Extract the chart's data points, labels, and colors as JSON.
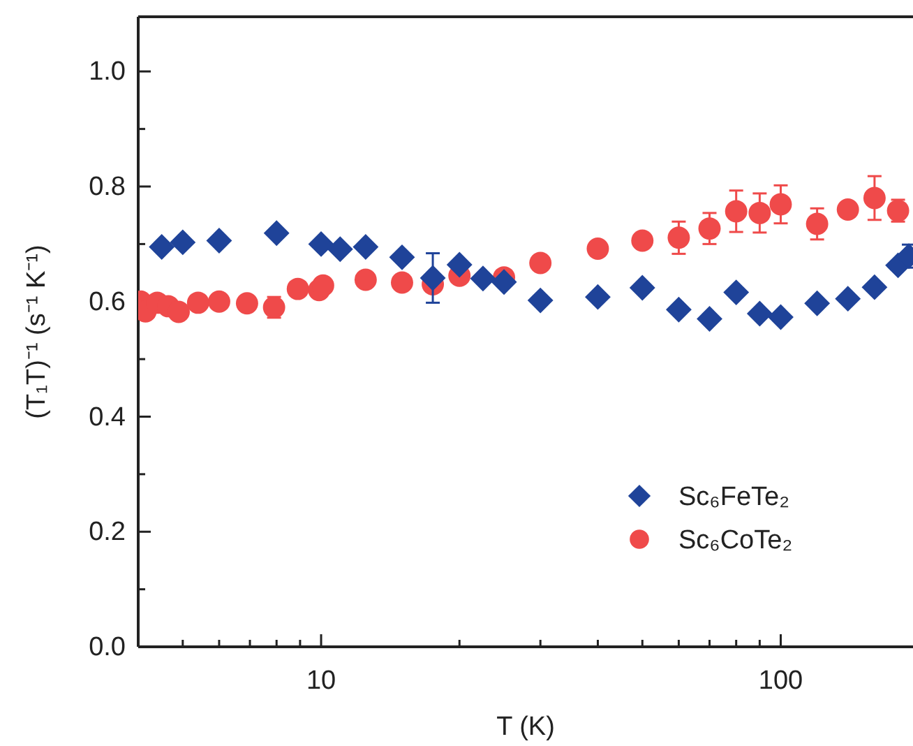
{
  "chart_data": {
    "type": "scatter",
    "xlabel": "T (K)",
    "ylabel": "(T₁T)⁻¹ (s⁻¹ K⁻¹)",
    "log": "x",
    "xlim": [
      4,
      194
    ],
    "ylim": [
      0,
      1.095
    ],
    "xticks": [
      {
        "value": 5,
        "label": null
      },
      {
        "value": 6,
        "label": null
      },
      {
        "value": 7,
        "label": null
      },
      {
        "value": 8,
        "label": null
      },
      {
        "value": 9,
        "label": null
      },
      10,
      {
        "value": 20,
        "label": null
      },
      {
        "value": 30,
        "label": null
      },
      {
        "value": 40,
        "label": null
      },
      {
        "value": 50,
        "label": null
      },
      {
        "value": 60,
        "label": null
      },
      {
        "value": 70,
        "label": null
      },
      {
        "value": 80,
        "label": null
      },
      {
        "value": 90,
        "label": null
      },
      100
    ],
    "yticks": [
      {
        "value": 0,
        "label": "0.0"
      },
      {
        "value": 0.1,
        "label": null
      },
      0.2,
      {
        "value": 0.3,
        "label": null
      },
      0.4,
      {
        "value": 0.5,
        "label": null
      },
      0.6,
      {
        "value": 0.7,
        "label": null
      },
      0.8,
      {
        "value": 0.9,
        "label": null
      },
      {
        "value": 1,
        "label": "1.0"
      }
    ],
    "legend": "bottom right",
    "grid": false,
    "series": [
      {
        "name": "Sc₆FeTe₂",
        "color": "#1f4399",
        "marker": "diamond",
        "x": [
          4.5,
          5,
          6,
          8,
          10,
          11,
          12.5,
          15,
          17.5,
          20,
          22.5,
          25,
          30,
          40,
          50,
          60,
          70,
          80,
          90,
          100,
          120,
          140,
          160,
          180,
          190
        ],
        "values": [
          0.695,
          0.703,
          0.706,
          0.719,
          0.7,
          0.691,
          0.695,
          0.677,
          0.641,
          0.664,
          0.64,
          0.634,
          0.602,
          0.608,
          0.624,
          0.586,
          0.57,
          0.616,
          0.579,
          0.573,
          0.597,
          0.605,
          0.625,
          0.663,
          0.679
        ],
        "errors": [
          null,
          null,
          null,
          null,
          null,
          null,
          null,
          null,
          0.043,
          null,
          null,
          null,
          null,
          null,
          null,
          null,
          null,
          null,
          null,
          null,
          null,
          null,
          null,
          null,
          0.02
        ]
      },
      {
        "name": "Sc₆CoTe₂",
        "color": "#ef4a4a",
        "marker": "circle",
        "x": [
          4.05,
          4.15,
          4.4,
          4.65,
          4.9,
          5.4,
          6,
          6.9,
          7.9,
          8.9,
          9.9,
          10.1,
          12.5,
          15,
          17.5,
          20,
          25,
          30,
          40,
          50,
          60,
          70,
          80,
          90,
          100,
          120,
          140,
          160,
          180
        ],
        "values": [
          0.6,
          0.583,
          0.598,
          0.592,
          0.582,
          0.598,
          0.6,
          0.597,
          0.59,
          0.622,
          0.62,
          0.628,
          0.638,
          0.633,
          0.63,
          0.645,
          0.642,
          0.667,
          0.692,
          0.706,
          0.711,
          0.727,
          0.757,
          0.754,
          0.769,
          0.735,
          0.76,
          0.78,
          0.758
        ],
        "errors": [
          null,
          null,
          null,
          null,
          null,
          null,
          null,
          null,
          0.018,
          null,
          null,
          null,
          null,
          null,
          null,
          null,
          null,
          null,
          0.01,
          null,
          0.028,
          0.027,
          0.036,
          0.034,
          0.033,
          0.027,
          null,
          0.038,
          0.019
        ]
      }
    ]
  }
}
